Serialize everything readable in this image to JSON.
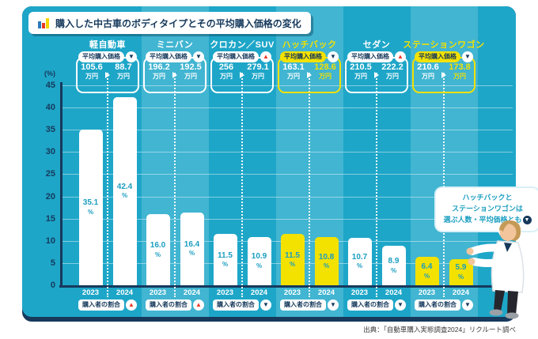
{
  "title": {
    "icon": "mini-bar-chart-icon",
    "text": "購入した中古車のボディタイプとその平均購入価格の変化"
  },
  "axis": {
    "percent_label": "(%)",
    "ticks": [
      45,
      40,
      35,
      30,
      25,
      20,
      15,
      10,
      5,
      0
    ],
    "ymax": 45
  },
  "labels": {
    "avg_price": "平均購入価格",
    "buyer_share": "購入者の割合",
    "currency_unit": "万円"
  },
  "callout": {
    "line1": "ハッチバックと",
    "line2": "ステーションワゴンは",
    "line3": "選ぶ人数・平均価格とも",
    "trend": "down"
  },
  "source": "出典：「自動車購入実態調査2024」リクルート調べ",
  "colors": {
    "teal": "#1EA6C8",
    "teal_light": "#41B5D1",
    "navy": "#16395C",
    "yellow": "#F3E100",
    "red": "#E83828",
    "label_teal": "#1B9EC0",
    "white": "#FFFFFF"
  },
  "chart_data": {
    "type": "bar",
    "title": "購入した中古車のボディタイプとその平均購入価格の変化",
    "ylabel": "(%)",
    "ylim": [
      0,
      45
    ],
    "grid": true,
    "legend": "none",
    "years": [
      "2023",
      "2024"
    ],
    "categories": [
      {
        "name": "軽自動車",
        "highlight": false,
        "share_percent": [
          "35.1",
          "42.4"
        ],
        "share_trend": "up",
        "avg_price_10k_yen": [
          "105.6",
          "88.7"
        ],
        "price_trend": "down"
      },
      {
        "name": "ミニバン",
        "highlight": false,
        "share_percent": [
          "16.0",
          "16.4"
        ],
        "share_trend": "up",
        "avg_price_10k_yen": [
          "196.2",
          "192.5"
        ],
        "price_trend": "down"
      },
      {
        "name": "クロカン／SUV",
        "highlight": false,
        "share_percent": [
          "11.5",
          "10.9"
        ],
        "share_trend": "down",
        "avg_price_10k_yen": [
          "256",
          "279.1"
        ],
        "price_trend": "up"
      },
      {
        "name": "ハッチバック",
        "highlight": true,
        "share_percent": [
          "11.5",
          "10.8"
        ],
        "share_trend": "down",
        "avg_price_10k_yen": [
          "163.1",
          "128.6"
        ],
        "price_trend": "down"
      },
      {
        "name": "セダン",
        "highlight": false,
        "share_percent": [
          "10.7",
          "8.9"
        ],
        "share_trend": "down",
        "avg_price_10k_yen": [
          "210.5",
          "222.2"
        ],
        "price_trend": "up"
      },
      {
        "name": "ステーションワゴン",
        "highlight": true,
        "share_percent": [
          "6.4",
          "5.9"
        ],
        "share_trend": "down",
        "avg_price_10k_yen": [
          "210.6",
          "173.8"
        ],
        "price_trend": "down"
      }
    ]
  }
}
